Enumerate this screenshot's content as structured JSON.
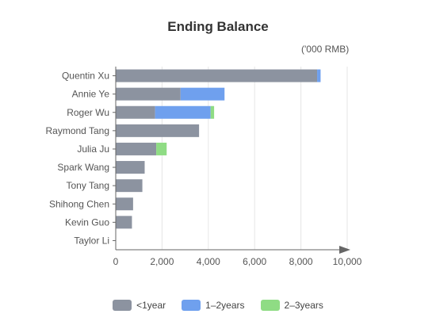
{
  "chart_data": {
    "type": "bar",
    "orientation": "horizontal",
    "stacked": true,
    "title": "Ending Balance",
    "unit_label": "('000 RMB)",
    "categories": [
      "Quentin Xu",
      "Annie Ye",
      "Roger Wu",
      "Raymond Tang",
      "Julia Ju",
      "Spark Wang",
      "Tony Tang",
      "Shihong Chen",
      "Kevin Guo",
      "Taylor Li"
    ],
    "series": [
      {
        "name": "<1year",
        "color": "#8c93a0",
        "values": [
          8700,
          2800,
          1700,
          3600,
          1750,
          1250,
          1150,
          750,
          700,
          0
        ]
      },
      {
        "name": "1–2years",
        "color": "#6fa0ee",
        "values": [
          150,
          1900,
          2400,
          0,
          0,
          0,
          0,
          0,
          0,
          0
        ]
      },
      {
        "name": "2–3years",
        "color": "#8fdc84",
        "values": [
          0,
          0,
          150,
          0,
          450,
          0,
          0,
          0,
          0,
          0
        ]
      }
    ],
    "xlim": [
      0,
      10000
    ],
    "xticks": [
      "0",
      "2,000",
      "4,000",
      "6,000",
      "8,000",
      "10,000"
    ],
    "grid": true,
    "legend_position": "bottom"
  }
}
